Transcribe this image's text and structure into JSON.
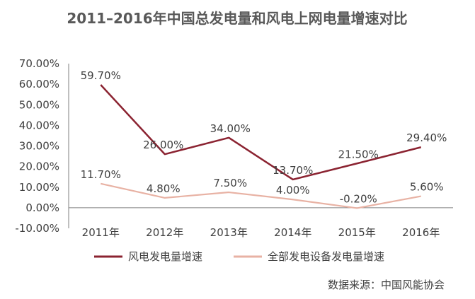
{
  "chart_data": {
    "type": "line",
    "title": "2011–2016年中国总发电量和风电上网电量增速对比",
    "xlabel": "",
    "ylabel": "",
    "categories": [
      "2011年",
      "2012年",
      "2013年",
      "2014年",
      "2015年",
      "2016年"
    ],
    "ylim": [
      -10,
      70
    ],
    "yticks": [
      70,
      60,
      50,
      40,
      30,
      20,
      10,
      0,
      -10
    ],
    "ytick_labels": [
      "70.00%",
      "60.00%",
      "50.00%",
      "40.00%",
      "30.00%",
      "20.00%",
      "10.00%",
      "0.00%",
      "-10.00%"
    ],
    "grid": false,
    "legend_position": "bottom",
    "series": [
      {
        "name": "风电发电量增速",
        "color": "#8b2331",
        "values": [
          59.7,
          26.0,
          34.0,
          13.7,
          21.5,
          29.4
        ],
        "labels": [
          "59.70%",
          "26.00%",
          "34.00%",
          "13.70%",
          "21.50%",
          "29.40%"
        ]
      },
      {
        "name": "全部发电设备发电量增速",
        "color": "#e8b2a4",
        "values": [
          11.7,
          4.8,
          7.5,
          4.0,
          -0.2,
          5.6
        ],
        "labels": [
          "11.70%",
          "4.80%",
          "7.50%",
          "4.00%",
          "-0.20%",
          "5.60%"
        ]
      }
    ],
    "source": "数据来源：中国风能协会"
  }
}
